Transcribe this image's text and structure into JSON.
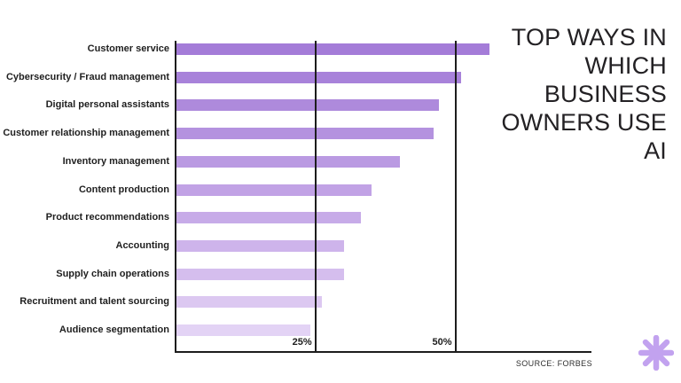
{
  "page": {
    "background": "#ffffff"
  },
  "header": {
    "title": "TOP WAYS IN WHICH BUSINESS OWNERS USE AI",
    "title_lines": [
      "TOP WAYS IN",
      "WHICH",
      "BUSINESS",
      "OWNERS USE",
      "AI"
    ],
    "title_color": "#232124"
  },
  "chart_data": {
    "type": "bar",
    "orientation": "horizontal",
    "title": "Top ways in which business owners use AI",
    "categories": [
      "Customer service",
      "Cybersecurity / Fraud management",
      "Digital personal assistants",
      "Customer relationship management",
      "Inventory management",
      "Content production",
      "Product recommendations",
      "Accounting",
      "Supply chain operations",
      "Recruitment and talent sourcing",
      "Audience segmentation"
    ],
    "values": [
      56,
      51,
      47,
      46,
      40,
      35,
      33,
      30,
      30,
      26,
      24
    ],
    "unit": "%",
    "xlim": [
      0,
      74
    ],
    "x_ticks": [
      {
        "value": 25,
        "label": "25%"
      },
      {
        "value": 50,
        "label": "50%"
      }
    ],
    "grid": "vertical lines at ticks, drawn over bars",
    "legend": "none",
    "bar_colors": [
      "#a47cd8",
      "#a882da",
      "#ae8adc",
      "#b492df",
      "#ba9ae2",
      "#c1a2e5",
      "#c7abe8",
      "#ceb4eb",
      "#d5beee",
      "#dcc8f1",
      "#e3d3f5"
    ],
    "axis_color": "#1d1d1d",
    "label_color": "#1f1f1f"
  },
  "footer": {
    "source_label": "SOURCE: FORBES",
    "source_color": "#2e2e2e"
  },
  "decor": {
    "asterisk_icon_color": "#c2a2ef"
  }
}
